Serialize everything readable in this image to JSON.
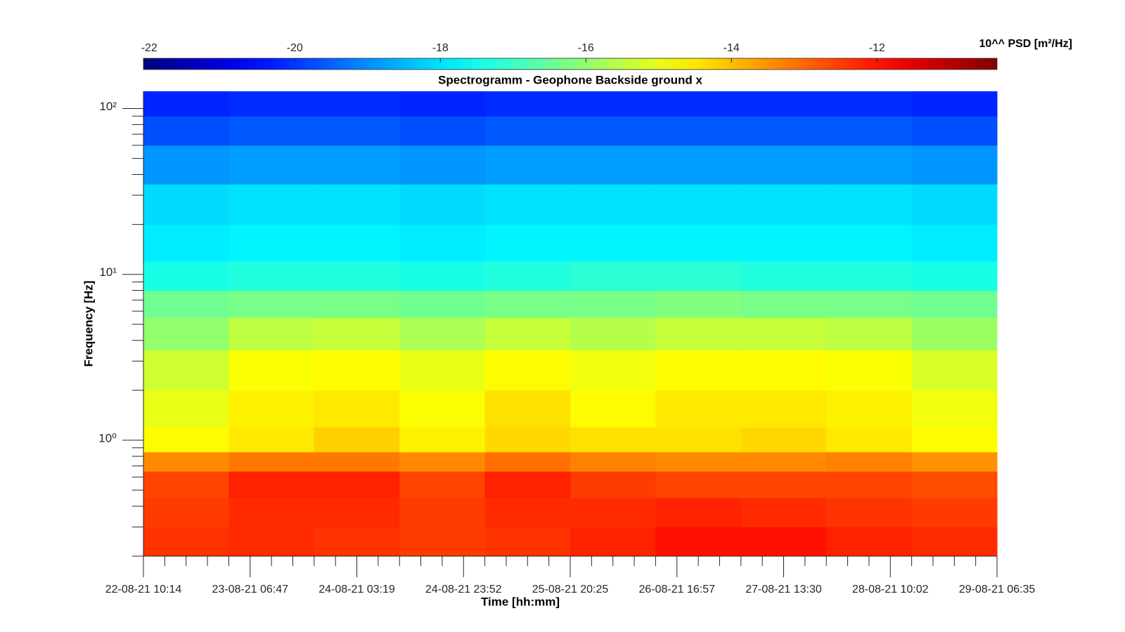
{
  "chart_data": {
    "type": "heatmap",
    "title": "Spectrogramm - Geophone Backside ground x",
    "xlabel": "Time [hh:mm]",
    "ylabel": "Frequency [Hz]",
    "colorbar_label": "10^^ PSD [m²/Hz]",
    "colormap": "jet",
    "clim": [
      -22.08,
      -10.35
    ],
    "cticks": [
      -22,
      -20,
      -18,
      -16,
      -14,
      -12
    ],
    "xlim": [
      0,
      40
    ],
    "xticks": [
      {
        "value": 0,
        "label": "22-08-21 10:14"
      },
      {
        "value": 5,
        "label": "23-08-21 06:47"
      },
      {
        "value": 10,
        "label": "24-08-21 03:19"
      },
      {
        "value": 15,
        "label": "24-08-21 23:52"
      },
      {
        "value": 20,
        "label": "25-08-21 20:25"
      },
      {
        "value": 25,
        "label": "26-08-21 16:57"
      },
      {
        "value": 30,
        "label": "27-08-21 13:30"
      },
      {
        "value": 35,
        "label": "28-08-21 10:02"
      },
      {
        "value": 40,
        "label": "29-08-21 06:35"
      }
    ],
    "x_minor_ticks": [
      1,
      2,
      3,
      4,
      6,
      7,
      8,
      9,
      11,
      12,
      13,
      14,
      16,
      17,
      18,
      19,
      21,
      22,
      23,
      24,
      26,
      27,
      28,
      29,
      31,
      32,
      33,
      34,
      36,
      37,
      38,
      39
    ],
    "ylim": [
      0.2,
      127
    ],
    "yscale": "log",
    "yticks": [
      {
        "value": 1,
        "label": "10⁰"
      },
      {
        "value": 10,
        "label": "10¹"
      },
      {
        "value": 100,
        "label": "10²"
      }
    ],
    "y_minor_ticks": [
      0.2,
      0.3,
      0.4,
      0.5,
      0.6,
      0.7,
      0.8,
      0.9,
      2,
      3,
      4,
      5,
      6,
      7,
      8,
      9,
      20,
      30,
      40,
      50,
      60,
      70,
      80,
      90
    ],
    "x_edges": [
      0,
      4,
      8,
      12,
      16,
      20,
      24,
      28,
      32,
      36,
      40
    ],
    "y_edges": [
      0.2,
      0.3,
      0.45,
      0.65,
      0.85,
      1.2,
      2,
      3.5,
      5.5,
      8,
      12,
      20,
      35,
      60,
      90,
      127
    ],
    "z": [
      [
        -12.4,
        -12.3,
        -12.4,
        -12.5,
        -12.4,
        -12.2,
        -12.0,
        -12.0,
        -12.2,
        -12.3
      ],
      [
        -12.5,
        -12.3,
        -12.3,
        -12.5,
        -12.3,
        -12.3,
        -12.2,
        -12.3,
        -12.4,
        -12.5
      ],
      [
        -12.6,
        -12.2,
        -12.2,
        -12.6,
        -12.2,
        -12.5,
        -12.6,
        -12.6,
        -12.6,
        -12.7
      ],
      [
        -13.4,
        -13.2,
        -13.2,
        -13.4,
        -13.1,
        -13.3,
        -13.4,
        -13.4,
        -13.3,
        -13.5
      ],
      [
        -14.7,
        -14.5,
        -14.2,
        -14.6,
        -14.3,
        -14.4,
        -14.4,
        -14.3,
        -14.5,
        -14.7
      ],
      [
        -15.0,
        -14.6,
        -14.5,
        -14.8,
        -14.4,
        -14.7,
        -14.5,
        -14.5,
        -14.6,
        -14.9
      ],
      [
        -15.3,
        -14.8,
        -14.7,
        -15.0,
        -14.7,
        -14.9,
        -14.7,
        -14.7,
        -14.8,
        -15.2
      ],
      [
        -16.0,
        -15.5,
        -15.4,
        -15.7,
        -15.4,
        -15.6,
        -15.4,
        -15.4,
        -15.5,
        -15.9
      ],
      [
        -16.4,
        -16.3,
        -16.3,
        -16.4,
        -16.3,
        -16.3,
        -16.2,
        -16.3,
        -16.3,
        -16.4
      ],
      [
        -17.4,
        -17.3,
        -17.3,
        -17.4,
        -17.3,
        -17.2,
        -17.2,
        -17.3,
        -17.3,
        -17.4
      ],
      [
        -17.9,
        -17.8,
        -17.8,
        -17.9,
        -17.8,
        -17.8,
        -17.8,
        -17.8,
        -17.8,
        -17.9
      ],
      [
        -18.1,
        -18.0,
        -18.0,
        -18.1,
        -18.0,
        -18.0,
        -18.0,
        -18.0,
        -18.0,
        -18.1
      ],
      [
        -18.9,
        -18.8,
        -18.8,
        -18.9,
        -18.8,
        -18.8,
        -18.8,
        -18.8,
        -18.8,
        -18.9
      ],
      [
        -19.7,
        -19.6,
        -19.6,
        -19.7,
        -19.6,
        -19.6,
        -19.6,
        -19.6,
        -19.6,
        -19.7
      ],
      [
        -20.2,
        -20.1,
        -20.1,
        -20.2,
        -20.1,
        -20.1,
        -20.1,
        -20.1,
        -20.1,
        -20.2
      ]
    ]
  }
}
